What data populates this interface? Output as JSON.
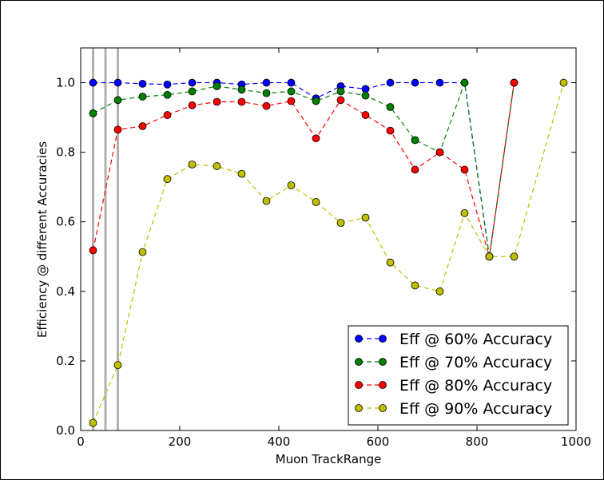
{
  "chart_data": {
    "type": "line",
    "title": "",
    "xlabel": "Muon TrackRange",
    "ylabel": "Efficiency @ different Accuracies",
    "xlim": [
      0,
      1000
    ],
    "ylim": [
      0,
      1.1
    ],
    "xticks": [
      0,
      200,
      400,
      600,
      800,
      1000
    ],
    "yticks": [
      0.0,
      0.2,
      0.4,
      0.6,
      0.8,
      1.0
    ],
    "xtick_labels": [
      "0",
      "200",
      "400",
      "600",
      "800",
      "1000"
    ],
    "ytick_labels": [
      "0.0",
      "0.2",
      "0.4",
      "0.6",
      "0.8",
      "1.0"
    ],
    "vertical_lines_x": [
      25,
      50,
      75
    ],
    "vertical_line_color": "#b0b0b0",
    "legend_position": "lower right",
    "series": [
      {
        "name": "Eff @ 60% Accuracy",
        "color": "#0000ff",
        "x": [
          25,
          75,
          125,
          175,
          225,
          275,
          325,
          375,
          425,
          475,
          525,
          575,
          625,
          675,
          725,
          775,
          825,
          875
        ],
        "y": [
          1.0,
          1.0,
          0.997,
          0.995,
          1.0,
          1.0,
          0.995,
          1.0,
          1.0,
          0.955,
          0.99,
          0.982,
          1.0,
          1.0,
          1.0,
          1.0,
          0.5,
          1.0
        ]
      },
      {
        "name": "Eff @ 70% Accuracy",
        "color": "#008000",
        "x": [
          25,
          75,
          125,
          175,
          225,
          275,
          325,
          375,
          425,
          475,
          525,
          575,
          625,
          675,
          725,
          775,
          825,
          875
        ],
        "y": [
          0.912,
          0.95,
          0.96,
          0.965,
          0.975,
          0.99,
          0.98,
          0.97,
          0.975,
          0.947,
          0.975,
          0.963,
          0.93,
          0.835,
          0.8,
          1.0,
          0.5,
          1.0
        ]
      },
      {
        "name": "Eff @ 80% Accuracy",
        "color": "#ff0000",
        "x": [
          25,
          75,
          125,
          175,
          225,
          275,
          325,
          375,
          425,
          475,
          525,
          575,
          625,
          675,
          725,
          775,
          825,
          875
        ],
        "y": [
          0.518,
          0.865,
          0.875,
          0.907,
          0.935,
          0.945,
          0.945,
          0.933,
          0.947,
          0.84,
          0.95,
          0.907,
          0.862,
          0.75,
          0.8,
          0.75,
          0.5,
          1.0
        ]
      },
      {
        "name": "Eff @ 90% Accuracy",
        "color": "#bfbf00",
        "x": [
          25,
          75,
          125,
          175,
          225,
          275,
          325,
          375,
          425,
          475,
          525,
          575,
          625,
          675,
          725,
          775,
          825,
          875,
          975
        ],
        "y": [
          0.022,
          0.188,
          0.513,
          0.723,
          0.765,
          0.76,
          0.738,
          0.66,
          0.705,
          0.657,
          0.597,
          0.612,
          0.483,
          0.417,
          0.4,
          0.625,
          0.5,
          0.5,
          1.0
        ]
      }
    ]
  }
}
